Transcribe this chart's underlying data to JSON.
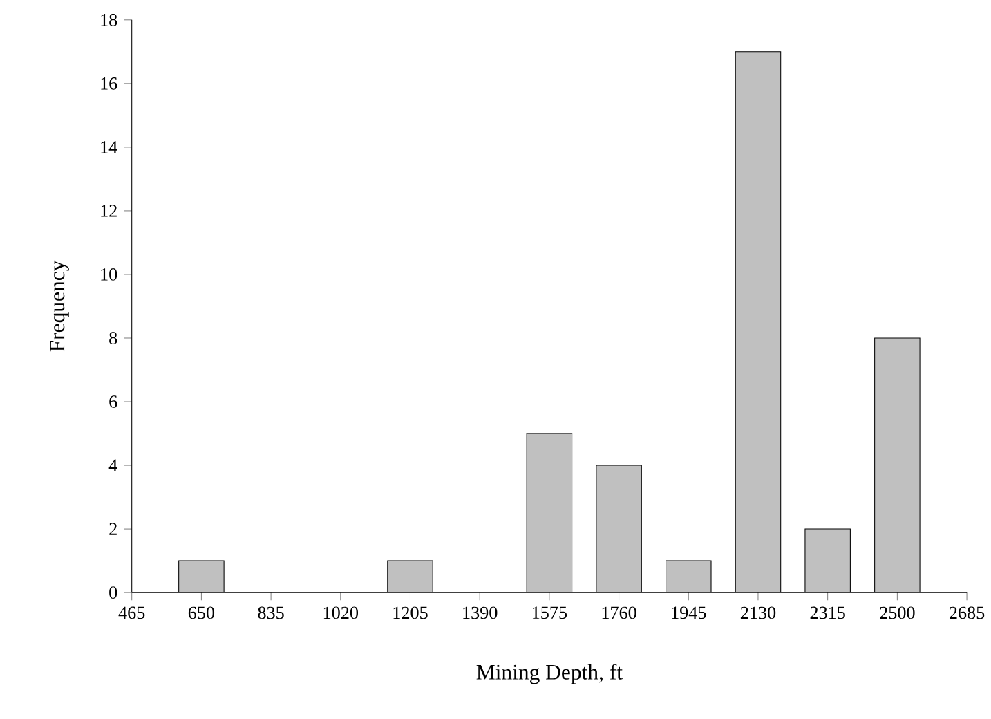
{
  "chart_data": {
    "type": "bar",
    "xlabel": "Mining Depth, ft",
    "ylabel": "Frequency",
    "x": [
      650,
      835,
      1020,
      1205,
      1390,
      1575,
      1760,
      1945,
      2130,
      2315,
      2500
    ],
    "values": [
      1,
      0,
      0,
      1,
      0,
      5,
      4,
      1,
      17,
      2,
      8
    ],
    "color": "#c0c0c0",
    "xlim": [
      465,
      2685
    ],
    "xticks": [
      465,
      650,
      835,
      1020,
      1205,
      1390,
      1575,
      1760,
      1945,
      2130,
      2315,
      2500,
      2685
    ],
    "ylim": [
      0,
      18
    ],
    "yticks": [
      0,
      2,
      4,
      6,
      8,
      10,
      12,
      14,
      16,
      18
    ]
  }
}
